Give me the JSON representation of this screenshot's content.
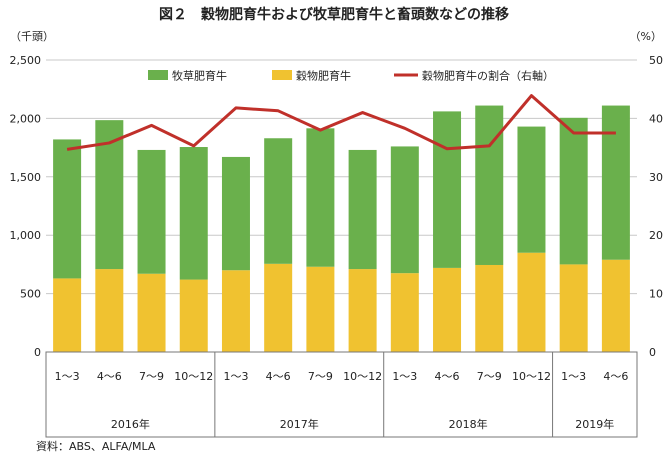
{
  "chart_data": {
    "type": "bar",
    "title": "図２　穀物肥育牛および牧草肥育牛と畜頭数などの推移",
    "ylabel_left": "（千頭）",
    "ylabel_right": "（%）",
    "source": "資料：ABS、ALFA/MLA",
    "ylim_left": [
      0,
      2500
    ],
    "ylim_right": [
      0,
      50
    ],
    "yticks_left": [
      "0",
      "500",
      "1,000",
      "1,500",
      "2,000",
      "2,500"
    ],
    "yticks_right": [
      "0",
      "10",
      "20",
      "30",
      "40",
      "50"
    ],
    "categories": [
      "1～3",
      "4～6",
      "7～9",
      "10～12",
      "1～3",
      "4～6",
      "7～9",
      "10～12",
      "1～3",
      "4～6",
      "7～9",
      "10～12",
      "1～3",
      "4～6"
    ],
    "year_groups": [
      {
        "label": "2016年",
        "count": 4
      },
      {
        "label": "2017年",
        "count": 4
      },
      {
        "label": "2018年",
        "count": 4
      },
      {
        "label": "2019年",
        "count": 2
      }
    ],
    "legend_position": "top",
    "series": [
      {
        "name": "穀物肥育牛",
        "kind": "bar-stack-bottom",
        "color": "#f0c230",
        "values": [
          630,
          710,
          670,
          620,
          700,
          755,
          730,
          710,
          675,
          720,
          745,
          850,
          750,
          790
        ]
      },
      {
        "name": "牧草肥育牛",
        "kind": "bar-stack-top",
        "color": "#6ab04c",
        "values": [
          1190,
          1275,
          1060,
          1135,
          970,
          1075,
          1185,
          1020,
          1085,
          1340,
          1365,
          1080,
          1255,
          1320
        ]
      },
      {
        "name": "穀物肥育牛の割合（右軸）",
        "kind": "line-right-axis",
        "color": "#c0302a",
        "values": [
          34.7,
          35.8,
          38.8,
          35.3,
          41.8,
          41.3,
          38.0,
          41.0,
          38.3,
          34.8,
          35.3,
          43.9,
          37.5,
          37.5
        ]
      }
    ]
  }
}
